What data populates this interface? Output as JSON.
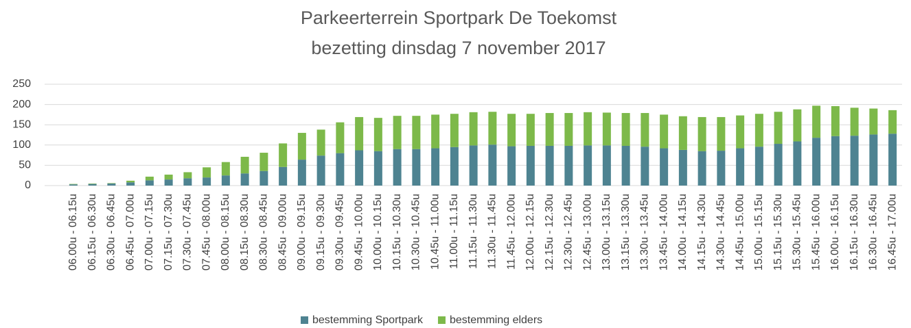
{
  "chart_data": {
    "type": "stacked_bar",
    "title": "Parkeerterrein Sportpark De Toekomst",
    "subtitle": "bezetting dinsdag 7 november 2017",
    "categories": [
      "06.00u - 06.15u",
      "06.15u - 06.30u",
      "06.30u - 06.45u",
      "06.45u - 07.00u",
      "07.00u - 07.15u",
      "07.15u - 07.30u",
      "07.30u - 07.45u",
      "07.45u - 08.00u",
      "08.00u - 08.15u",
      "08.15u - 08.30u",
      "08.30u - 08.45u",
      "08.45u - 09.00u",
      "09.00u - 09.15u",
      "09.15u - 09.30u",
      "09.30u - 09.45u",
      "09.45u - 10.00u",
      "10.00u - 10.15u",
      "10.15u - 10.30u",
      "10.30u - 10.45u",
      "10.45u - 11.00u",
      "11.00u - 11.15u",
      "11.15u - 11.30u",
      "11.30u - 11.45u",
      "11.45u - 12.00u",
      "12.00u - 12.15u",
      "12.15u - 12.30u",
      "12.30u - 12.45u",
      "12.45u - 13.00u",
      "13.00u - 13.15u",
      "13.15u - 13.30u",
      "13.30u - 13.45u",
      "13.45u - 14.00u",
      "14.00u - 14.15u",
      "14.15u - 14.30u",
      "14.30u - 14.45u",
      "14.45u - 15.00u",
      "15.00u - 15.15u",
      "15.15u - 15.30u",
      "15.30u - 15.45u",
      "15.45u - 16.00u",
      "16.00u - 16.15u",
      "16.15u - 16.30u",
      "16.30u - 16.45u",
      "16.45u - 17.00u"
    ],
    "series": [
      {
        "name": "bestemming Sportpark",
        "color": "#4e8391",
        "values": [
          3,
          4,
          5,
          8,
          13,
          15,
          18,
          20,
          25,
          30,
          36,
          46,
          64,
          74,
          80,
          87,
          85,
          90,
          90,
          92,
          95,
          99,
          101,
          97,
          98,
          98,
          98,
          99,
          99,
          98,
          96,
          92,
          88,
          85,
          86,
          92,
          96,
          103,
          109,
          118,
          122,
          123,
          126,
          128
        ]
      },
      {
        "name": "bestemming elders",
        "color": "#7db94a",
        "values": [
          1,
          1,
          1,
          4,
          9,
          12,
          15,
          25,
          33,
          41,
          45,
          58,
          66,
          64,
          76,
          82,
          82,
          82,
          82,
          83,
          82,
          82,
          81,
          80,
          79,
          81,
          81,
          82,
          81,
          81,
          83,
          83,
          83,
          84,
          83,
          81,
          81,
          79,
          79,
          79,
          74,
          69,
          64,
          58
        ]
      }
    ],
    "ylim": [
      0,
      250
    ],
    "yticks": [
      0,
      50,
      100,
      150,
      200,
      250
    ],
    "grid": true
  }
}
